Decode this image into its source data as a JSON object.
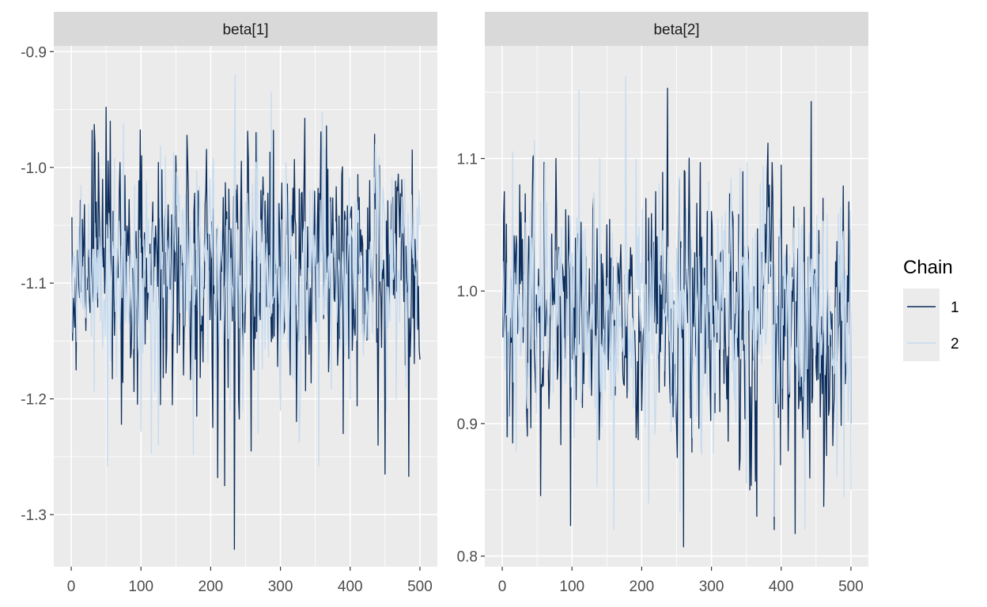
{
  "chart_data": [
    {
      "type": "line",
      "panel": "beta[1]",
      "xlim": [
        -25,
        525
      ],
      "ylim": [
        -1.345,
        -0.895
      ],
      "x_ticks": [
        0,
        100,
        200,
        300,
        400,
        500
      ],
      "x_tick_labels": [
        "0",
        "100",
        "200",
        "300",
        "400",
        "500"
      ],
      "y_ticks": [
        -1.3,
        -1.2,
        -1.1,
        -1.0,
        -0.9
      ],
      "y_tick_labels": [
        "-1.3",
        "-1.2",
        "-1.1",
        "-1.0",
        "-0.9"
      ],
      "iterations": 500,
      "series": [
        {
          "name": "1",
          "color": "#0b2d5c",
          "n": 500,
          "mean": -1.085,
          "sd": 0.05,
          "min": -1.33,
          "min_at": 234,
          "max": -0.948,
          "max_at": 50,
          "spikes": [
            [
              1,
              -1.043
            ],
            [
              7,
              -1.175
            ],
            [
              30,
              -0.968
            ],
            [
              33,
              -0.963
            ],
            [
              50,
              -0.948
            ],
            [
              72,
              -1.222
            ],
            [
              101,
              -0.99
            ],
            [
              128,
              -1.205
            ],
            [
              150,
              -0.99
            ],
            [
              180,
              -1.215
            ],
            [
              210,
              -1.268
            ],
            [
              220,
              -1.275
            ],
            [
              234,
              -1.33
            ],
            [
              240,
              -1.2
            ],
            [
              258,
              -1.245
            ],
            [
              265,
              -0.97
            ],
            [
              290,
              -0.968
            ],
            [
              300,
              -1.2
            ],
            [
              322,
              -1.05
            ],
            [
              336,
              -1.193
            ],
            [
              360,
              -0.97
            ],
            [
              390,
              -1.23
            ],
            [
              410,
              -1.206
            ],
            [
              425,
              -1.035
            ],
            [
              440,
              -1.24
            ],
            [
              450,
              -1.265
            ],
            [
              468,
              -1.02
            ],
            [
              484,
              -1.267
            ],
            [
              489,
              -0.985
            ],
            [
              497,
              -1.14
            ]
          ]
        },
        {
          "name": "2",
          "color": "#c6dbef",
          "n": 500,
          "mean": -1.09,
          "sd": 0.045,
          "min": -1.258,
          "min_at": 52,
          "max": -0.92,
          "max_at": 235,
          "spikes": [
            [
              52,
              -1.258
            ],
            [
              75,
              -0.962
            ],
            [
              100,
              -1.228
            ],
            [
              115,
              -1.247
            ],
            [
              125,
              -1.24
            ],
            [
              135,
              -0.99
            ],
            [
              175,
              -1.248
            ],
            [
              210,
              -1.05
            ],
            [
              228,
              -1.21
            ],
            [
              235,
              -0.92
            ],
            [
              250,
              -1.03
            ],
            [
              268,
              -1.23
            ],
            [
              287,
              -0.935
            ],
            [
              300,
              -1.21
            ],
            [
              355,
              -1.258
            ],
            [
              360,
              -0.952
            ],
            [
              380,
              -1.1
            ],
            [
              400,
              -1.2
            ],
            [
              420,
              -1.08
            ],
            [
              452,
              -1.21
            ],
            [
              466,
              -1.2
            ],
            [
              480,
              -1.19
            ],
            [
              500,
              -1.05
            ]
          ]
        }
      ]
    },
    {
      "type": "line",
      "panel": "beta[2]",
      "xlim": [
        -25,
        525
      ],
      "ylim": [
        0.792,
        1.185
      ],
      "x_ticks": [
        0,
        100,
        200,
        300,
        400,
        500
      ],
      "x_tick_labels": [
        "0",
        "100",
        "200",
        "300",
        "400",
        "500"
      ],
      "y_ticks": [
        0.8,
        0.9,
        1.0,
        1.1
      ],
      "y_tick_labels": [
        "0.8",
        "0.9",
        "1.0",
        "1.1"
      ],
      "iterations": 500,
      "series": [
        {
          "name": "1",
          "color": "#0b2d5c",
          "n": 500,
          "mean": 0.975,
          "sd": 0.05,
          "min": 0.807,
          "min_at": 260,
          "max": 1.153,
          "max_at": 237,
          "spikes": [
            [
              1,
              0.965
            ],
            [
              3,
              1.075
            ],
            [
              7,
              0.89
            ],
            [
              60,
              1.097
            ],
            [
              75,
              0.99
            ],
            [
              77,
              1.1
            ],
            [
              98,
              0.823
            ],
            [
              150,
              1.05
            ],
            [
              170,
              1.035
            ],
            [
              220,
              1.075
            ],
            [
              237,
              1.153
            ],
            [
              260,
              0.807
            ],
            [
              300,
              1.06
            ],
            [
              330,
              1.06
            ],
            [
              340,
              0.865
            ],
            [
              345,
              1.09
            ],
            [
              355,
              0.85
            ],
            [
              365,
              0.83
            ],
            [
              380,
              1.09
            ],
            [
              390,
              0.82
            ],
            [
              400,
              1.095
            ],
            [
              420,
              0.817
            ],
            [
              443,
              1.143
            ],
            [
              456,
              0.905
            ],
            [
              460,
              1.07
            ],
            [
              500,
              0.9
            ]
          ]
        },
        {
          "name": "2",
          "color": "#c6dbef",
          "n": 500,
          "mean": 0.985,
          "sd": 0.045,
          "min": 0.82,
          "min_at": 160,
          "max": 1.162,
          "max_at": 177,
          "spikes": [
            [
              15,
              1.105
            ],
            [
              40,
              1.06
            ],
            [
              110,
              1.152
            ],
            [
              140,
              1.1
            ],
            [
              160,
              0.82
            ],
            [
              177,
              1.162
            ],
            [
              210,
              0.84
            ],
            [
              255,
              0.833
            ],
            [
              320,
              1.06
            ],
            [
              350,
              0.855
            ],
            [
              390,
              0.83
            ],
            [
              430,
              1.05
            ],
            [
              480,
              0.86
            ],
            [
              490,
              0.845
            ],
            [
              500,
              0.85
            ]
          ]
        }
      ]
    }
  ],
  "legend": {
    "title": "Chain",
    "items": [
      {
        "label": "1",
        "color": "#0b2d5c"
      },
      {
        "label": "2",
        "color": "#c6dbef"
      }
    ]
  },
  "theme": {
    "panel_background": "#ebebeb",
    "strip_background": "#d9d9d9",
    "grid_color": "#ffffff",
    "tick_color": "#333333",
    "grid": true,
    "legend_position": "right"
  }
}
